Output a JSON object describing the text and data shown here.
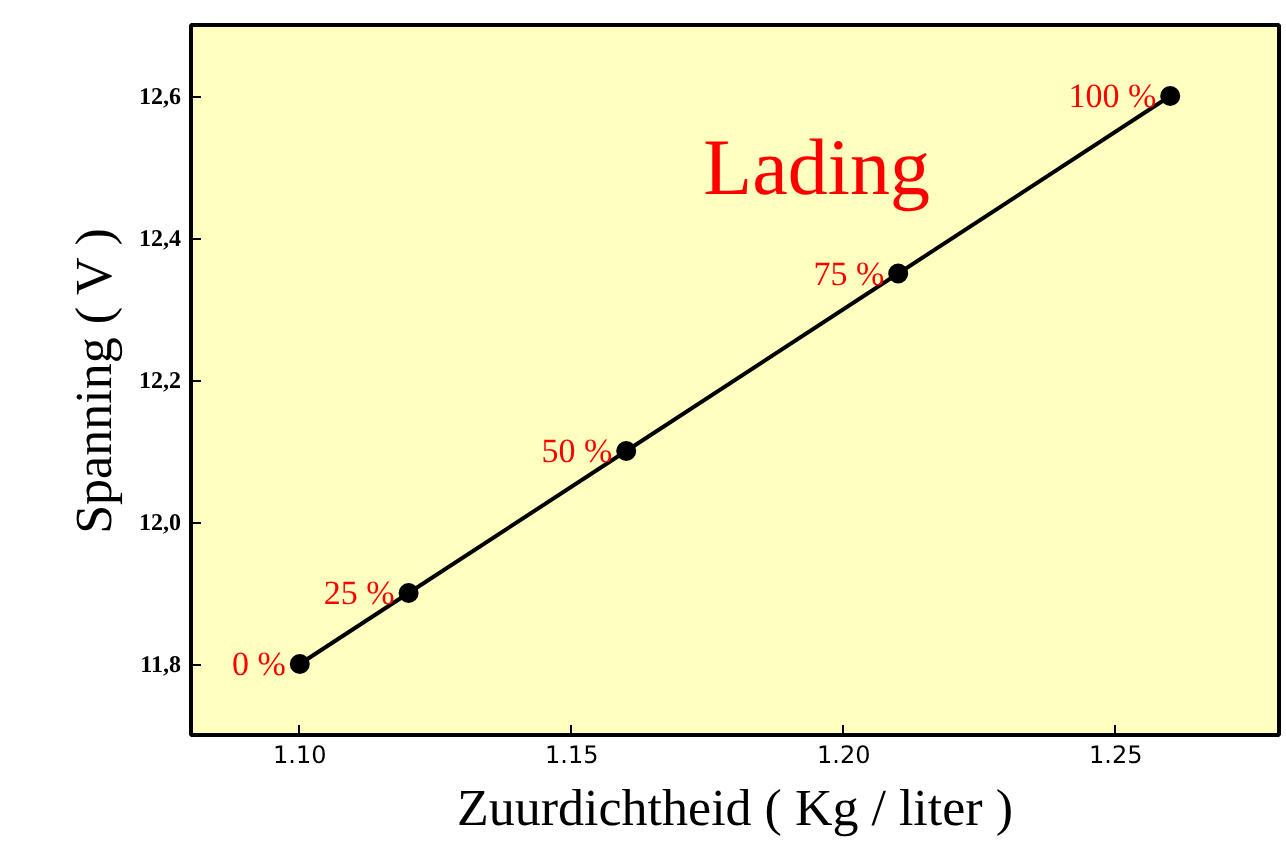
{
  "chart_data": {
    "type": "line",
    "title": "Lading",
    "xlabel": "Zuurdichtheid ( Kg / liter )",
    "ylabel": "Spanning ( V )",
    "x": [
      1.1,
      1.12,
      1.16,
      1.21,
      1.26
    ],
    "series": [
      {
        "color": "#000000",
        "values": [
          11.8,
          11.9,
          12.1,
          12.35,
          12.6
        ]
      }
    ],
    "marker": "circle",
    "line_style": "solid",
    "grid": false,
    "xlim": [
      1.08,
      1.28
    ],
    "xticks": [
      {
        "value": 1.1,
        "label": "1.10"
      },
      {
        "value": 1.15,
        "label": "1.15"
      },
      {
        "value": 1.2,
        "label": "1.20"
      },
      {
        "value": 1.25,
        "label": "1.25"
      }
    ],
    "ylim": [
      11.7,
      12.7
    ],
    "yticks": [
      {
        "value": 11.8,
        "label": "11,8"
      },
      {
        "value": 12.0,
        "label": "12,0"
      },
      {
        "value": 12.2,
        "label": "12,2"
      },
      {
        "value": 12.4,
        "label": "12,4"
      },
      {
        "value": 12.6,
        "label": "12,6"
      }
    ],
    "annotations": [
      {
        "text": "0 %",
        "x": 1.1,
        "y": 11.8
      },
      {
        "text": "25 %",
        "x": 1.12,
        "y": 11.9
      },
      {
        "text": "50 %",
        "x": 1.16,
        "y": 12.1
      },
      {
        "text": "75 %",
        "x": 1.21,
        "y": 12.35
      },
      {
        "text": "100 %",
        "x": 1.26,
        "y": 12.6
      }
    ]
  }
}
